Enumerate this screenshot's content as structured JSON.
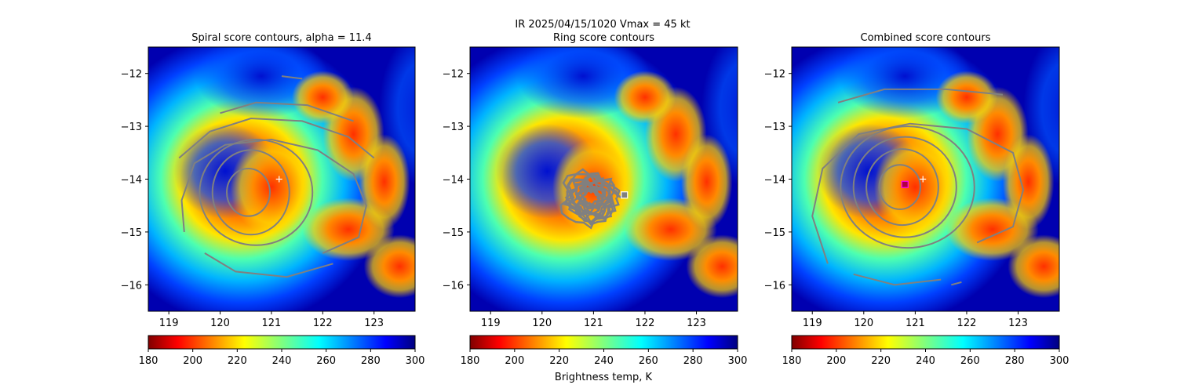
{
  "figure": {
    "suptitle_line1": "IR  2025/04/15/1020    Vmax = 45 kt",
    "colorbar_label": "Brightness temp, K",
    "colors": {
      "contour": "#808080",
      "marker_plus": "#ffffff",
      "marker_square_ring": "#ffffff",
      "marker_square_combined": "#ff00ff"
    }
  },
  "chart_data": [
    {
      "type": "heatmap",
      "title": "Spiral score contours, alpha = 11.4",
      "xlabel": "",
      "ylabel": "",
      "xlim": [
        118.6,
        123.8
      ],
      "ylim": [
        -16.5,
        -11.5
      ],
      "x_ticks": [
        119,
        120,
        121,
        122,
        123
      ],
      "x_tick_labels": [
        "119",
        "120",
        "121",
        "122",
        "123"
      ],
      "y_ticks": [
        -12,
        -13,
        -14,
        -15,
        -16
      ],
      "y_tick_labels": [
        "−12",
        "−13",
        "−14",
        "−15",
        "−16"
      ],
      "colorbar": {
        "range": [
          180,
          300
        ],
        "ticks": [
          180,
          200,
          220,
          240,
          260,
          280,
          300
        ],
        "tick_labels": [
          "180",
          "200",
          "220",
          "240",
          "260",
          "280",
          "300"
        ],
        "colormap": "jet_r"
      },
      "storm_center_est": {
        "lon": 120.6,
        "lat": -14.25
      },
      "markers": [
        {
          "kind": "plus",
          "lon": 121.15,
          "lat": -14.0
        }
      ],
      "contours": [
        {
          "kind": "ellipse",
          "cx": 120.55,
          "cy": -14.25,
          "rx": 0.42,
          "ry": 0.45
        },
        {
          "kind": "ellipse",
          "cx": 120.6,
          "cy": -14.25,
          "rx": 0.75,
          "ry": 0.8
        },
        {
          "kind": "ellipse",
          "cx": 120.7,
          "cy": -14.25,
          "rx": 1.1,
          "ry": 1.0
        },
        {
          "kind": "spiral",
          "points": [
            [
              119.3,
              -15.0
            ],
            [
              119.25,
              -14.4
            ],
            [
              119.5,
              -13.7
            ],
            [
              120.1,
              -13.35
            ],
            [
              121.0,
              -13.25
            ],
            [
              121.9,
              -13.45
            ],
            [
              122.6,
              -13.9
            ],
            [
              122.85,
              -14.5
            ],
            [
              122.7,
              -15.1
            ],
            [
              122.0,
              -15.4
            ]
          ]
        },
        {
          "kind": "spiral",
          "points": [
            [
              119.2,
              -13.6
            ],
            [
              119.8,
              -13.1
            ],
            [
              120.6,
              -12.85
            ],
            [
              121.6,
              -12.9
            ],
            [
              122.5,
              -13.2
            ],
            [
              123.0,
              -13.6
            ]
          ]
        },
        {
          "kind": "spiral",
          "points": [
            [
              122.2,
              -15.6
            ],
            [
              121.3,
              -15.85
            ],
            [
              120.3,
              -15.75
            ],
            [
              119.7,
              -15.4
            ]
          ]
        },
        {
          "kind": "spiral",
          "points": [
            [
              120.0,
              -12.75
            ],
            [
              120.7,
              -12.55
            ],
            [
              121.7,
              -12.6
            ],
            [
              122.6,
              -12.9
            ]
          ]
        },
        {
          "kind": "spiral",
          "points": [
            [
              121.2,
              -12.05
            ],
            [
              121.6,
              -12.1
            ]
          ]
        }
      ]
    },
    {
      "type": "heatmap",
      "title": "Ring score contours",
      "xlabel": "",
      "ylabel": "",
      "xlim": [
        118.6,
        123.8
      ],
      "ylim": [
        -16.5,
        -11.5
      ],
      "x_ticks": [
        119,
        120,
        121,
        122,
        123
      ],
      "x_tick_labels": [
        "119",
        "120",
        "121",
        "122",
        "123"
      ],
      "y_ticks": [
        -12,
        -13,
        -14,
        -15,
        -16
      ],
      "y_tick_labels": [
        "−12",
        "−13",
        "−14",
        "−15",
        "−16"
      ],
      "colorbar": {
        "range": [
          180,
          300
        ],
        "ticks": [
          180,
          200,
          220,
          240,
          260,
          280,
          300
        ],
        "tick_labels": [
          "180",
          "200",
          "220",
          "240",
          "260",
          "280",
          "300"
        ],
        "colormap": "jet_r"
      },
      "storm_center_est": {
        "lon": 120.6,
        "lat": -14.25
      },
      "markers": [
        {
          "kind": "square",
          "lon": 121.6,
          "lat": -14.3
        }
      ],
      "contours": [
        {
          "kind": "tangle",
          "cx": 120.95,
          "cy": -14.35,
          "rx": 0.55,
          "ry": 0.5,
          "count": 14
        }
      ]
    },
    {
      "type": "heatmap",
      "title": "Combined score contours",
      "xlabel": "",
      "ylabel": "",
      "xlim": [
        118.6,
        123.8
      ],
      "ylim": [
        -16.5,
        -11.5
      ],
      "x_ticks": [
        119,
        120,
        121,
        122,
        123
      ],
      "x_tick_labels": [
        "119",
        "120",
        "121",
        "122",
        "123"
      ],
      "y_ticks": [
        -12,
        -13,
        -14,
        -15,
        -16
      ],
      "y_tick_labels": [
        "−12",
        "−13",
        "−14",
        "−15",
        "−16"
      ],
      "colorbar": {
        "range": [
          180,
          300
        ],
        "ticks": [
          180,
          200,
          220,
          240,
          260,
          280,
          300
        ],
        "tick_labels": [
          "180",
          "200",
          "220",
          "240",
          "260",
          "280",
          "300"
        ],
        "colormap": "jet_r"
      },
      "storm_center_est": {
        "lon": 120.6,
        "lat": -14.25
      },
      "markers": [
        {
          "kind": "plus",
          "lon": 121.15,
          "lat": -14.0
        },
        {
          "kind": "square-magenta",
          "lon": 120.8,
          "lat": -14.1
        }
      ],
      "contours": [
        {
          "kind": "ellipse",
          "cx": 120.7,
          "cy": -14.15,
          "rx": 0.4,
          "ry": 0.42
        },
        {
          "kind": "ellipse",
          "cx": 120.75,
          "cy": -14.15,
          "rx": 0.7,
          "ry": 0.72
        },
        {
          "kind": "ellipse",
          "cx": 120.8,
          "cy": -14.15,
          "rx": 1.0,
          "ry": 0.95
        },
        {
          "kind": "ellipse",
          "cx": 120.85,
          "cy": -14.15,
          "rx": 1.3,
          "ry": 1.15
        },
        {
          "kind": "spiral",
          "points": [
            [
              119.3,
              -15.6
            ],
            [
              119.0,
              -14.7
            ],
            [
              119.2,
              -13.8
            ],
            [
              119.9,
              -13.15
            ],
            [
              120.9,
              -12.95
            ],
            [
              122.0,
              -13.05
            ],
            [
              122.9,
              -13.5
            ],
            [
              123.1,
              -14.2
            ],
            [
              122.9,
              -14.9
            ],
            [
              122.2,
              -15.2
            ]
          ]
        },
        {
          "kind": "spiral",
          "points": [
            [
              119.5,
              -12.55
            ],
            [
              120.4,
              -12.3
            ],
            [
              121.6,
              -12.3
            ],
            [
              122.7,
              -12.4
            ]
          ]
        },
        {
          "kind": "spiral",
          "points": [
            [
              121.5,
              -15.9
            ],
            [
              120.6,
              -16.0
            ],
            [
              119.8,
              -15.8
            ]
          ]
        },
        {
          "kind": "spiral",
          "points": [
            [
              121.7,
              -16.0
            ],
            [
              121.9,
              -15.95
            ]
          ]
        }
      ]
    }
  ]
}
